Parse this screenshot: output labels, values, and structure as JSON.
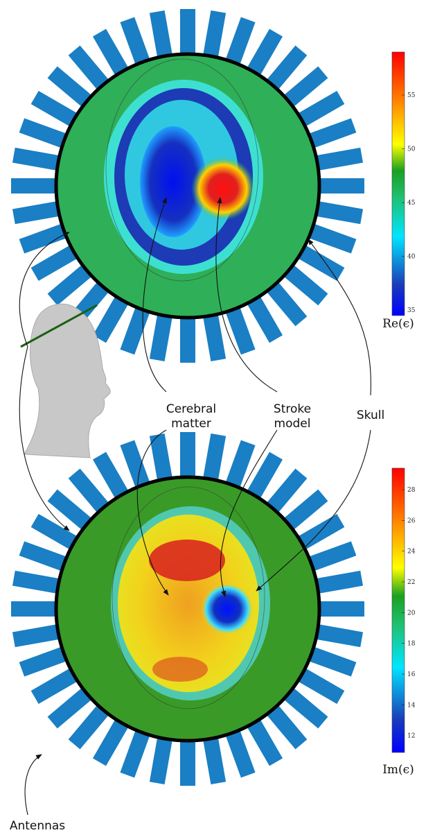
{
  "annotations": [
    {
      "lines": [
        "Cerebral",
        "matter"
      ]
    },
    {
      "lines": [
        "Stroke",
        "model"
      ]
    },
    {
      "lines": [
        "Skull"
      ]
    },
    {
      "lines": [
        "Antennas"
      ]
    }
  ],
  "colorbars": [
    {
      "label": "Re(ϵ)",
      "lim": [
        34.5,
        59
      ],
      "ticks": [
        35,
        40,
        45,
        50,
        55
      ]
    },
    {
      "label": "Im(ϵ)",
      "lim": [
        10.9,
        29.4
      ],
      "ticks": [
        12,
        14,
        16,
        18,
        20,
        22,
        24,
        26,
        28
      ]
    }
  ]
}
